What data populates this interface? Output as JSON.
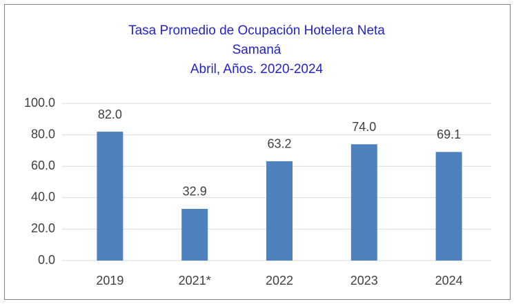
{
  "chart_data": {
    "type": "bar",
    "title": [
      "Tasa Promedio de Ocupación Hotelera Neta",
      "Samaná",
      "Abril, Años. 2020-2024"
    ],
    "categories": [
      "2019",
      "2021*",
      "2022",
      "2023",
      "2024"
    ],
    "values": [
      82.0,
      32.9,
      63.2,
      74.0,
      69.1
    ],
    "value_labels": [
      "82.0",
      "32.9",
      "63.2",
      "74.0",
      "69.1"
    ],
    "color": "#4f81bd",
    "ylim": [
      0,
      100
    ],
    "yticks": [
      {
        "value": 0,
        "label": "0.0"
      },
      {
        "value": 20,
        "label": "20.0"
      },
      {
        "value": 40,
        "label": "40.0"
      },
      {
        "value": 60,
        "label": "60.0"
      },
      {
        "value": 80,
        "label": "80.0"
      },
      {
        "value": 100,
        "label": "100.0"
      }
    ],
    "grid": true
  }
}
